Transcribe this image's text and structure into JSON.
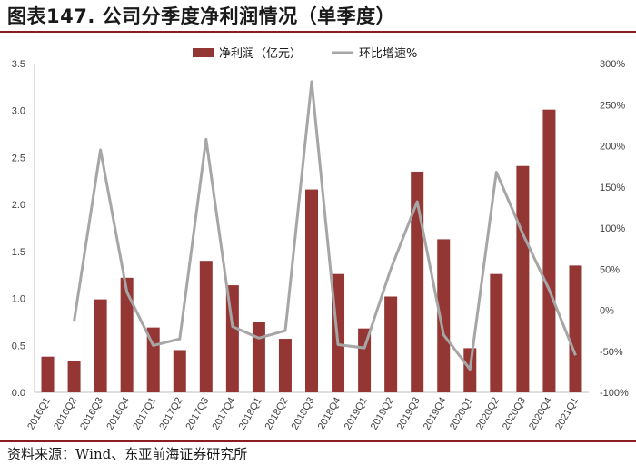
{
  "header": {
    "title": "图表147. 公司分季度净利润情况（单季度）"
  },
  "footer": {
    "source": "资料来源：Wind、东亚前海证券研究所"
  },
  "chart_data": {
    "type": "bar",
    "title": "公司分季度净利润情况（单季度）",
    "categories": [
      "2016Q1",
      "2016Q2",
      "2016Q3",
      "2016Q4",
      "2017Q1",
      "2017Q2",
      "2017Q3",
      "2017Q4",
      "2018Q1",
      "2018Q2",
      "2018Q3",
      "2018Q4",
      "2019Q1",
      "2019Q2",
      "2019Q3",
      "2019Q4",
      "2020Q1",
      "2020Q2",
      "2020Q3",
      "2020Q4",
      "2021Q1"
    ],
    "series": [
      {
        "name": "净利润（亿元）",
        "type": "bar",
        "axis": "left",
        "color": "#943634",
        "values": [
          0.38,
          0.33,
          0.99,
          1.22,
          0.69,
          0.45,
          1.4,
          1.14,
          0.75,
          0.57,
          2.16,
          1.26,
          0.68,
          1.02,
          2.35,
          1.63,
          0.47,
          1.26,
          2.41,
          3.01,
          1.35
        ]
      },
      {
        "name": "环比增速%",
        "type": "line",
        "axis": "right",
        "color": "#a6a6a6",
        "values": [
          null,
          -13,
          195,
          22,
          -43,
          -35,
          208,
          -20,
          -34,
          -25,
          278,
          -42,
          -46,
          50,
          132,
          -30,
          -72,
          168,
          93,
          25,
          -55
        ]
      }
    ],
    "y_left": {
      "min": 0,
      "max": 3.5,
      "step": 0.5,
      "ticks": [
        "0.0",
        "0.5",
        "1.0",
        "1.5",
        "2.0",
        "2.5",
        "3.0",
        "3.5"
      ]
    },
    "y_right": {
      "min": -100,
      "max": 300,
      "step": 50,
      "ticks": [
        "-100%",
        "-50%",
        "0%",
        "50%",
        "100%",
        "150%",
        "200%",
        "250%",
        "300%"
      ]
    },
    "grid": false,
    "legend": "top-center"
  }
}
